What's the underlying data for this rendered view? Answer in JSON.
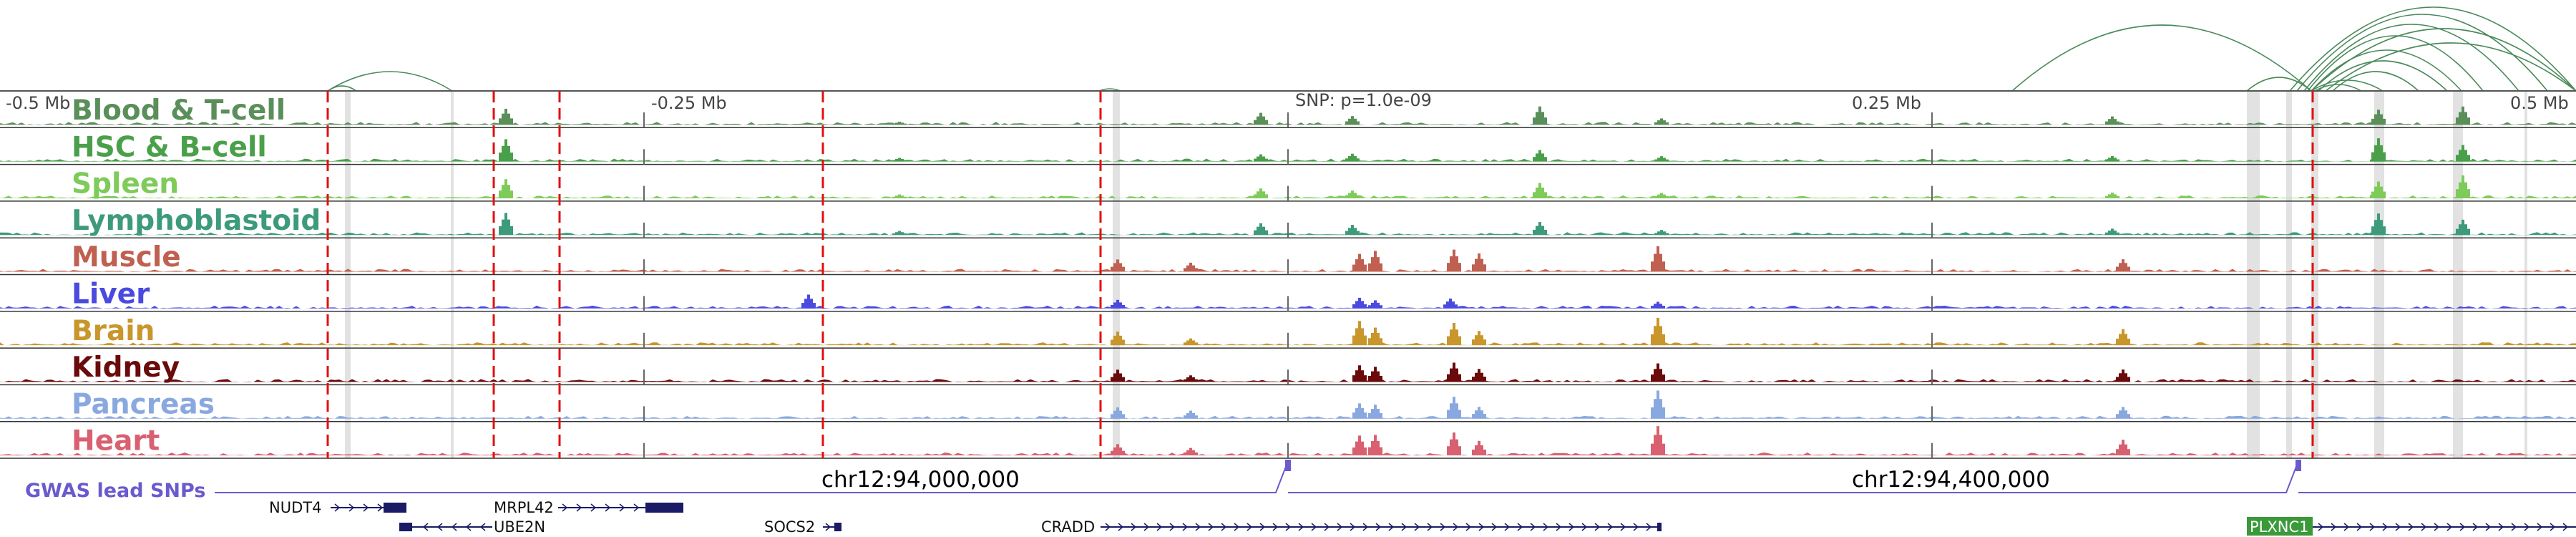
{
  "ruler": {
    "left_label": "-0.5 Mb",
    "mid_left_label": "-0.25 Mb",
    "snp_label": "SNP: p=1.0e-09",
    "mid_right_label": "0.25 Mb",
    "right_label": "0.5 Mb"
  },
  "tracks": [
    {
      "name": "Blood & T-cell",
      "color": "#5a8f5a",
      "profile": "blood"
    },
    {
      "name": "HSC & B-cell",
      "color": "#4aa04a",
      "profile": "blood"
    },
    {
      "name": "Spleen",
      "color": "#7ecb5a",
      "profile": "blood"
    },
    {
      "name": "Lymphoblastoid",
      "color": "#3d9a7a",
      "profile": "blood"
    },
    {
      "name": "Muscle",
      "color": "#c06050",
      "profile": "tissue"
    },
    {
      "name": "Liver",
      "color": "#4a4ae0",
      "profile": "liver"
    },
    {
      "name": "Brain",
      "color": "#c8962a",
      "profile": "tissue"
    },
    {
      "name": "Kidney",
      "color": "#6a0a0a",
      "profile": "tissue"
    },
    {
      "name": "Pancreas",
      "color": "#8aa8e0",
      "profile": "tissue"
    },
    {
      "name": "Heart",
      "color": "#d86070",
      "profile": "tissue"
    }
  ],
  "gwas": {
    "label": "GWAS lead SNPs",
    "coord_left": "chr12:94,000,000",
    "coord_right": "chr12:94,400,000",
    "line_color": "#6a5acd"
  },
  "genes": [
    {
      "name": "NUDT4",
      "row": 1
    },
    {
      "name": "MRPL42",
      "row": 1
    },
    {
      "name": "UBE2N",
      "row": 2
    },
    {
      "name": "SOCS2",
      "row": 2
    },
    {
      "name": "CRADD",
      "row": 2
    },
    {
      "name": "PLXNC1",
      "row": 2
    }
  ],
  "colors": {
    "dashed_marker": "#e01010",
    "highlight_band": "#d8d8d8",
    "arc": "#4a8a5a",
    "gene": "#1a1a66",
    "plxnc1_box": "#3a9a3a"
  }
}
